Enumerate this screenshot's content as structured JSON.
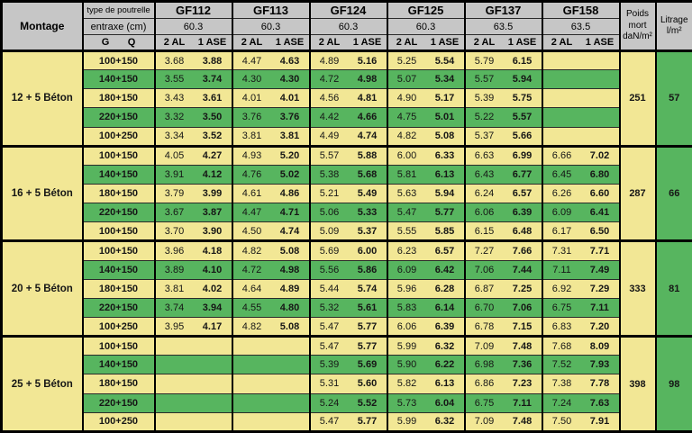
{
  "colors": {
    "row_yellow": "#f2e795",
    "row_green": "#57b55f",
    "header_gray": "#c6c6c6",
    "border_black": "#000000"
  },
  "table": {
    "corner_label": "Montage",
    "header": {
      "row1_label": "type de poutrelle",
      "row2_label": "entraxe (cm)",
      "g_label": "G",
      "q_label": "Q",
      "subcols": [
        "2 AL",
        "1 ASE"
      ],
      "beams": [
        {
          "name": "GF112",
          "entraxe": "60.3"
        },
        {
          "name": "GF113",
          "entraxe": "60.3"
        },
        {
          "name": "GF124",
          "entraxe": "60.3"
        },
        {
          "name": "GF125",
          "entraxe": "60.3"
        },
        {
          "name": "GF137",
          "entraxe": "63.5"
        },
        {
          "name": "GF158",
          "entraxe": "63.5"
        }
      ],
      "poids_label": "Poids mort daN/m²",
      "litrage_label": "Litrage l/m²"
    },
    "groups": [
      {
        "montage": "12 + 5 Béton",
        "poids": "251",
        "litrage": "57",
        "rows": [
          {
            "load": "100+150",
            "values": [
              [
                "3.68",
                "3.88"
              ],
              [
                "4.47",
                "4.63"
              ],
              [
                "4.89",
                "5.16"
              ],
              [
                "5.25",
                "5.54"
              ],
              [
                "5.79",
                "6.15"
              ],
              null
            ]
          },
          {
            "load": "140+150",
            "values": [
              [
                "3.55",
                "3.74"
              ],
              [
                "4.30",
                "4.30"
              ],
              [
                "4.72",
                "4.98"
              ],
              [
                "5.07",
                "5.34"
              ],
              [
                "5.57",
                "5.94"
              ],
              null
            ]
          },
          {
            "load": "180+150",
            "values": [
              [
                "3.43",
                "3.61"
              ],
              [
                "4.01",
                "4.01"
              ],
              [
                "4.56",
                "4.81"
              ],
              [
                "4.90",
                "5.17"
              ],
              [
                "5.39",
                "5.75"
              ],
              null
            ]
          },
          {
            "load": "220+150",
            "values": [
              [
                "3.32",
                "3.50"
              ],
              [
                "3.76",
                "3.76"
              ],
              [
                "4.42",
                "4.66"
              ],
              [
                "4.75",
                "5.01"
              ],
              [
                "5.22",
                "5.57"
              ],
              null
            ]
          },
          {
            "load": "100+250",
            "values": [
              [
                "3.34",
                "3.52"
              ],
              [
                "3.81",
                "3.81"
              ],
              [
                "4.49",
                "4.74"
              ],
              [
                "4.82",
                "5.08"
              ],
              [
                "5.37",
                "5.66"
              ],
              null
            ]
          }
        ]
      },
      {
        "montage": "16 + 5 Béton",
        "poids": "287",
        "litrage": "66",
        "rows": [
          {
            "load": "100+150",
            "values": [
              [
                "4.05",
                "4.27"
              ],
              [
                "4.93",
                "5.20"
              ],
              [
                "5.57",
                "5.88"
              ],
              [
                "6.00",
                "6.33"
              ],
              [
                "6.63",
                "6.99"
              ],
              [
                "6.66",
                "7.02"
              ]
            ]
          },
          {
            "load": "140+150",
            "values": [
              [
                "3.91",
                "4.12"
              ],
              [
                "4.76",
                "5.02"
              ],
              [
                "5.38",
                "5.68"
              ],
              [
                "5.81",
                "6.13"
              ],
              [
                "6.43",
                "6.77"
              ],
              [
                "6.45",
                "6.80"
              ]
            ]
          },
          {
            "load": "180+150",
            "values": [
              [
                "3.79",
                "3.99"
              ],
              [
                "4.61",
                "4.86"
              ],
              [
                "5.21",
                "5.49"
              ],
              [
                "5.63",
                "5.94"
              ],
              [
                "6.24",
                "6.57"
              ],
              [
                "6.26",
                "6.60"
              ]
            ]
          },
          {
            "load": "220+150",
            "values": [
              [
                "3.67",
                "3.87"
              ],
              [
                "4.47",
                "4.71"
              ],
              [
                "5.06",
                "5.33"
              ],
              [
                "5.47",
                "5.77"
              ],
              [
                "6.06",
                "6.39"
              ],
              [
                "6.09",
                "6.41"
              ]
            ]
          },
          {
            "load": "100+150",
            "values": [
              [
                "3.70",
                "3.90"
              ],
              [
                "4.50",
                "4.74"
              ],
              [
                "5.09",
                "5.37"
              ],
              [
                "5.55",
                "5.85"
              ],
              [
                "6.15",
                "6.48"
              ],
              [
                "6.17",
                "6.50"
              ]
            ]
          }
        ]
      },
      {
        "montage": "20 + 5 Béton",
        "poids": "333",
        "litrage": "81",
        "rows": [
          {
            "load": "100+150",
            "values": [
              [
                "3.96",
                "4.18"
              ],
              [
                "4.82",
                "5.08"
              ],
              [
                "5.69",
                "6.00"
              ],
              [
                "6.23",
                "6.57"
              ],
              [
                "7.27",
                "7.66"
              ],
              [
                "7.31",
                "7.71"
              ]
            ]
          },
          {
            "load": "140+150",
            "values": [
              [
                "3.89",
                "4.10"
              ],
              [
                "4.72",
                "4.98"
              ],
              [
                "5.56",
                "5.86"
              ],
              [
                "6.09",
                "6.42"
              ],
              [
                "7.06",
                "7.44"
              ],
              [
                "7.11",
                "7.49"
              ]
            ]
          },
          {
            "load": "180+150",
            "values": [
              [
                "3.81",
                "4.02"
              ],
              [
                "4.64",
                "4.89"
              ],
              [
                "5.44",
                "5.74"
              ],
              [
                "5.96",
                "6.28"
              ],
              [
                "6.87",
                "7.25"
              ],
              [
                "6.92",
                "7.29"
              ]
            ]
          },
          {
            "load": "220+150",
            "values": [
              [
                "3.74",
                "3.94"
              ],
              [
                "4.55",
                "4.80"
              ],
              [
                "5.32",
                "5.61"
              ],
              [
                "5.83",
                "6.14"
              ],
              [
                "6.70",
                "7.06"
              ],
              [
                "6.75",
                "7.11"
              ]
            ]
          },
          {
            "load": "100+250",
            "values": [
              [
                "3.95",
                "4.17"
              ],
              [
                "4.82",
                "5.08"
              ],
              [
                "5.47",
                "5.77"
              ],
              [
                "6.06",
                "6.39"
              ],
              [
                "6.78",
                "7.15"
              ],
              [
                "6.83",
                "7.20"
              ]
            ]
          }
        ]
      },
      {
        "montage": "25 + 5 Béton",
        "poids": "398",
        "litrage": "98",
        "rows": [
          {
            "load": "100+150",
            "values": [
              null,
              null,
              [
                "5.47",
                "5.77"
              ],
              [
                "5.99",
                "6.32"
              ],
              [
                "7.09",
                "7.48"
              ],
              [
                "7.68",
                "8.09"
              ]
            ]
          },
          {
            "load": "140+150",
            "values": [
              null,
              null,
              [
                "5.39",
                "5.69"
              ],
              [
                "5.90",
                "6.22"
              ],
              [
                "6.98",
                "7.36"
              ],
              [
                "7.52",
                "7.93"
              ]
            ]
          },
          {
            "load": "180+150",
            "values": [
              null,
              null,
              [
                "5.31",
                "5.60"
              ],
              [
                "5.82",
                "6.13"
              ],
              [
                "6.86",
                "7.23"
              ],
              [
                "7.38",
                "7.78"
              ]
            ]
          },
          {
            "load": "220+150",
            "values": [
              null,
              null,
              [
                "5.24",
                "5.52"
              ],
              [
                "5.73",
                "6.04"
              ],
              [
                "6.75",
                "7.11"
              ],
              [
                "7.24",
                "7.63"
              ]
            ]
          },
          {
            "load": "100+250",
            "values": [
              null,
              null,
              [
                "5.47",
                "5.77"
              ],
              [
                "5.99",
                "6.32"
              ],
              [
                "7.09",
                "7.48"
              ],
              [
                "7.50",
                "7.91"
              ]
            ]
          }
        ]
      }
    ]
  }
}
